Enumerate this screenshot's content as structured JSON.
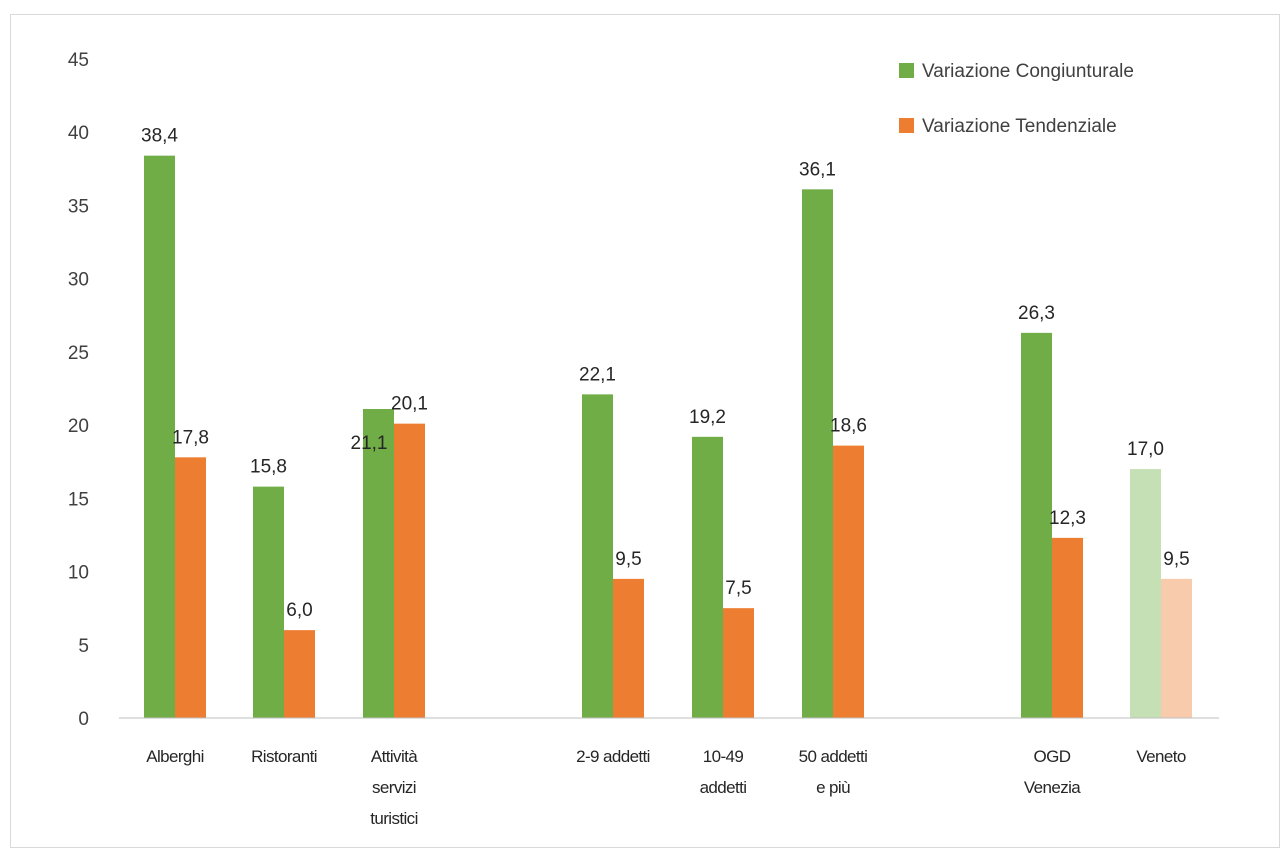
{
  "caption": "",
  "chart_data": {
    "type": "bar",
    "categories": [
      [
        "Alberghi"
      ],
      [
        "Ristoranti"
      ],
      [
        "Attività",
        "servizi",
        "turistici"
      ],
      [
        "2-9 addetti"
      ],
      [
        "10-49",
        "addetti"
      ],
      [
        "50 addetti",
        "e più"
      ],
      [
        "OGD",
        "Venezia"
      ],
      [
        "Veneto"
      ]
    ],
    "series": [
      {
        "name": "Variazione Congiunturale",
        "color": "#70ad47",
        "values": [
          38.4,
          15.8,
          21.1,
          22.1,
          19.2,
          36.1,
          26.3,
          17.0
        ],
        "labels": [
          "38,4",
          "15,8",
          "21,1",
          "22,1",
          "19,2",
          "36,1",
          "26,3",
          "17,0"
        ]
      },
      {
        "name": "Variazione Tendenziale",
        "color": "#ed7d31",
        "values": [
          17.8,
          6.0,
          20.1,
          9.5,
          7.5,
          18.6,
          12.3,
          9.5
        ],
        "labels": [
          "17,8",
          "6,0",
          "20,1",
          "9,5",
          "7,5",
          "18,6",
          "12,3",
          "9,5"
        ]
      }
    ],
    "highlight_faded_category": "Veneto",
    "faded_colors": [
      "#c5e0b4",
      "#f8cbad"
    ],
    "ylim": [
      0,
      45
    ],
    "yticks": [
      0,
      5,
      10,
      15,
      20,
      25,
      30,
      35,
      40,
      45
    ],
    "grid": false,
    "legend_position": "top-right",
    "title": "",
    "xlabel": "",
    "ylabel": ""
  }
}
